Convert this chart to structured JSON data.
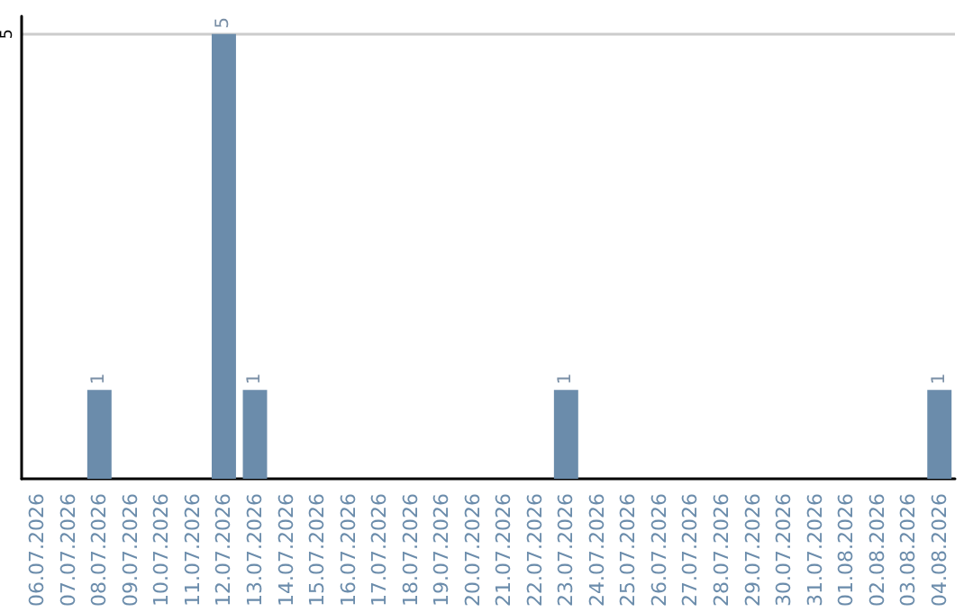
{
  "chart_data": {
    "type": "bar",
    "categories": [
      "06.07.2026",
      "07.07.2026",
      "08.07.2026",
      "09.07.2026",
      "10.07.2026",
      "11.07.2026",
      "12.07.2026",
      "13.07.2026",
      "14.07.2026",
      "15.07.2026",
      "16.07.2026",
      "17.07.2026",
      "18.07.2026",
      "19.07.2026",
      "20.07.2026",
      "21.07.2026",
      "22.07.2026",
      "23.07.2026",
      "24.07.2026",
      "25.07.2026",
      "26.07.2026",
      "27.07.2026",
      "28.07.2026",
      "29.07.2026",
      "30.07.2026",
      "31.07.2026",
      "01.08.2026",
      "02.08.2026",
      "03.08.2026",
      "04.08.2026"
    ],
    "values": [
      0,
      0,
      1,
      0,
      0,
      0,
      5,
      1,
      0,
      0,
      0,
      0,
      0,
      0,
      0,
      0,
      0,
      1,
      0,
      0,
      0,
      0,
      0,
      0,
      0,
      0,
      0,
      0,
      0,
      1
    ],
    "value_labels": [
      null,
      null,
      "1",
      null,
      null,
      null,
      "5",
      "1",
      null,
      null,
      null,
      null,
      null,
      null,
      null,
      null,
      null,
      "1",
      null,
      null,
      null,
      null,
      null,
      null,
      null,
      null,
      null,
      null,
      null,
      "1"
    ],
    "color": "#6b8cab",
    "ylim": [
      0,
      5.2
    ],
    "yticks": [
      5
    ],
    "grid": "y"
  }
}
